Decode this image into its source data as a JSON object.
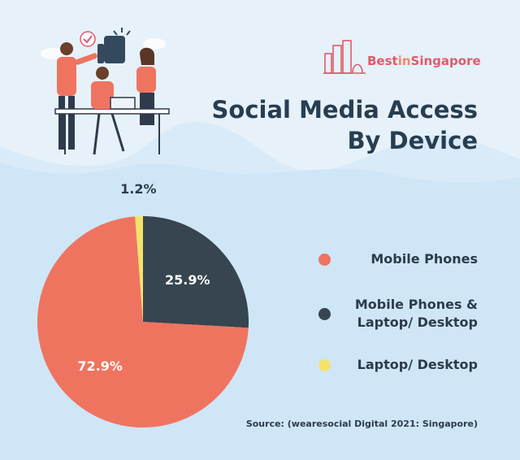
{
  "title_line1": "Social Media Access",
  "title_line2": "By Device",
  "logo": {
    "part1": "Best",
    "part2": "in",
    "part3": "Singapore"
  },
  "source": "Source: (wearesocial Digital 2021: Singapore)",
  "colors": {
    "mobile": "#ef7460",
    "both": "#36454f",
    "laptop": "#f4e36a",
    "background": "#d9ebf8",
    "title": "#273e52"
  },
  "chart_data": {
    "type": "pie",
    "title": "Social Media Access By Device",
    "slices": [
      {
        "label": "Mobile Phones",
        "value": 72.9,
        "display": "72.9%",
        "color": "#ef7460"
      },
      {
        "label": "Mobile Phones & Laptop/ Desktop",
        "value": 25.9,
        "display": "25.9%",
        "color": "#36454f"
      },
      {
        "label": "Laptop/ Desktop",
        "value": 1.2,
        "display": "1.2%",
        "color": "#f4e36a"
      }
    ],
    "legend_position": "right"
  },
  "legend": [
    {
      "line1": "Mobile Phones",
      "line2": ""
    },
    {
      "line1": "Mobile Phones &",
      "line2": "Laptop/ Desktop"
    },
    {
      "line1": "Laptop/ Desktop",
      "line2": ""
    }
  ]
}
